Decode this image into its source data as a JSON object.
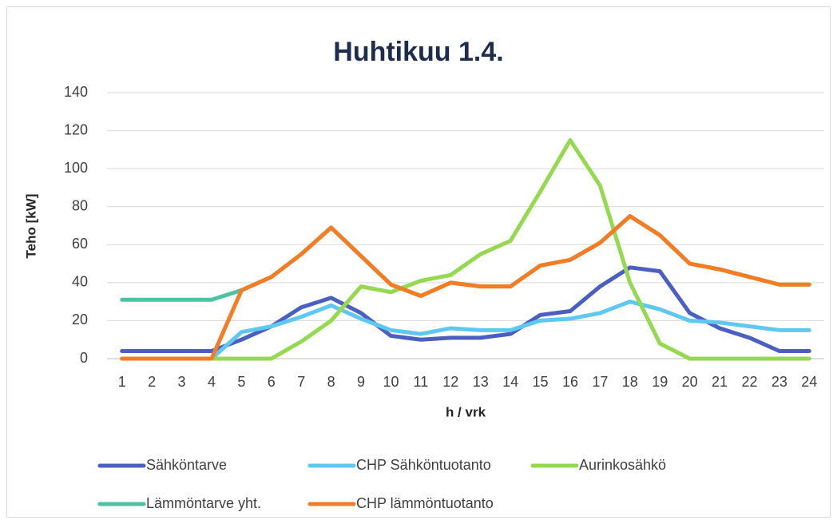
{
  "chart_data": {
    "type": "line",
    "title": "Huhtikuu 1.4.",
    "x_label": "h / vrk",
    "y_label": "Teho [kW]",
    "categories": [
      "1",
      "2",
      "3",
      "4",
      "5",
      "6",
      "7",
      "8",
      "9",
      "10",
      "11",
      "12",
      "13",
      "14",
      "15",
      "16",
      "17",
      "18",
      "19",
      "20",
      "21",
      "22",
      "23",
      "24"
    ],
    "ylim": [
      0,
      140
    ],
    "yticks": [
      0,
      20,
      40,
      60,
      80,
      100,
      120,
      140
    ],
    "grid": true,
    "legend": "bottom",
    "series": [
      {
        "name": "Sähköntarve",
        "color": "#4a5fc1",
        "values": [
          4,
          4,
          4,
          4,
          10,
          17,
          27,
          32,
          24,
          12,
          10,
          11,
          11,
          13,
          23,
          25,
          38,
          48,
          46,
          24,
          16,
          11,
          4,
          4
        ]
      },
      {
        "name": "CHP Sähköntuotanto",
        "color": "#5ec8f2",
        "values": [
          0,
          0,
          0,
          0,
          14,
          17,
          22,
          28,
          21,
          15,
          13,
          16,
          15,
          15,
          20,
          21,
          24,
          30,
          26,
          20,
          19,
          17,
          15,
          15
        ]
      },
      {
        "name": "Aurinkosähkö",
        "color": "#95d94f",
        "values": [
          0,
          0,
          0,
          0,
          0,
          0,
          9,
          20,
          38,
          35,
          41,
          44,
          55,
          62,
          88,
          115,
          91,
          40,
          8,
          0,
          0,
          0,
          0,
          0
        ]
      },
      {
        "name": "Lämmöntarve yht.",
        "color": "#4cc3a2",
        "values": [
          31,
          31,
          31,
          31,
          36,
          43,
          55,
          69,
          54,
          39,
          33,
          40,
          38,
          38,
          49,
          52,
          61,
          75,
          65,
          50,
          47,
          43,
          39,
          39
        ]
      },
      {
        "name": "CHP lämmöntuotanto",
        "color": "#f57c22",
        "values": [
          0,
          0,
          0,
          0,
          36,
          43,
          55,
          69,
          54,
          39,
          33,
          40,
          38,
          38,
          49,
          52,
          61,
          75,
          65,
          50,
          47,
          43,
          39,
          39
        ]
      }
    ]
  }
}
